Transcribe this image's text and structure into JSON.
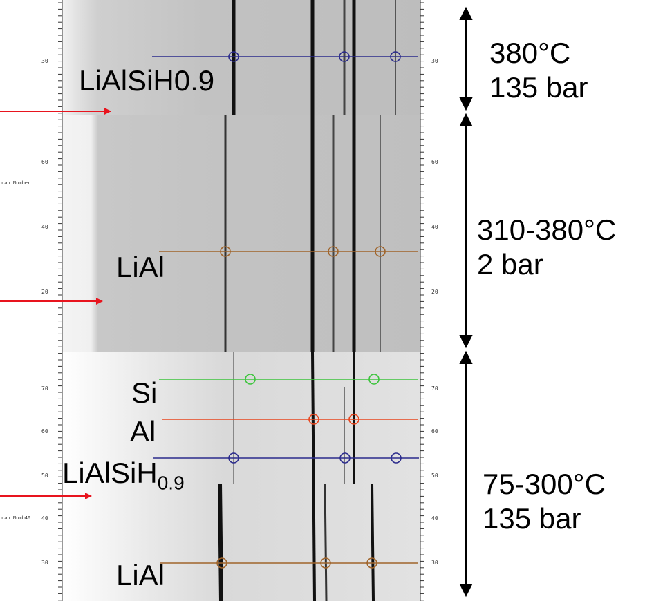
{
  "panels": [
    {
      "id": "top",
      "conditions": {
        "line1": "380°C",
        "line2": "135 bar"
      },
      "y_ticks": [
        "30"
      ],
      "phases": [
        {
          "label": "LiAlSiH0.9",
          "color": "#2b2b8c"
        }
      ]
    },
    {
      "id": "middle",
      "axis_title": "can Number",
      "conditions": {
        "line1": "310-380°C",
        "line2": "2 bar"
      },
      "y_ticks": [
        "60",
        "40",
        "20"
      ],
      "phases": [
        {
          "label": "LiAl",
          "color": "#a0642a"
        }
      ]
    },
    {
      "id": "bottom",
      "axis_title": "can Numb40",
      "conditions": {
        "line1": "75-300°C",
        "line2": "135 bar"
      },
      "y_ticks": [
        "70",
        "60",
        "50",
        "40",
        "30"
      ],
      "phases": [
        {
          "label": "Si",
          "color": "#3cc43c"
        },
        {
          "label": "Al",
          "color": "#e8461e"
        },
        {
          "label": "LiAlSiH",
          "subscript": "0.9",
          "color": "#2b2b8c"
        },
        {
          "label": "LiAl",
          "color": "#a0642a"
        }
      ]
    }
  ],
  "colors": {
    "arrow_red": "#e8141e",
    "axis": "#333333"
  }
}
